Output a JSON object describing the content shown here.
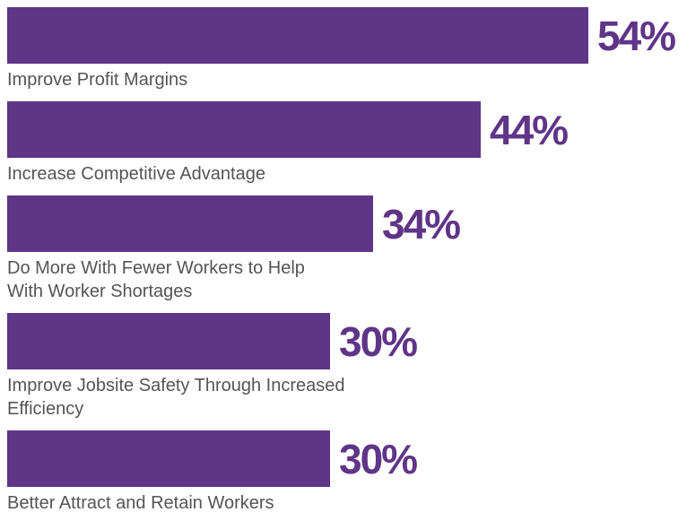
{
  "chart_data": {
    "type": "bar",
    "orientation": "horizontal",
    "categories": [
      "Improve Profit Margins",
      "Increase Competitive Advantage",
      "Do More With Fewer Workers to Help\nWith Worker Shortages",
      "Improve Jobsite Safety Through Increased\nEfficiency",
      "Better Attract and Retain Workers"
    ],
    "values": [
      54,
      44,
      34,
      30,
      30
    ],
    "value_labels": [
      "54%",
      "44%",
      "34%",
      "30%",
      "30%"
    ],
    "color": "#5f3588"
  }
}
